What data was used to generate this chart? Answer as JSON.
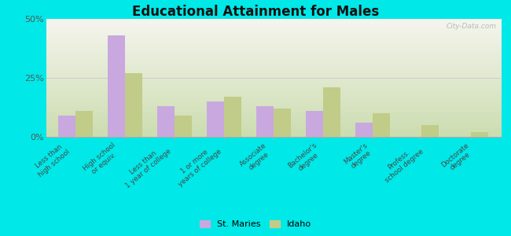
{
  "title": "Educational Attainment for Males",
  "categories": [
    "Less than\nhigh school",
    "High school\nor equiv.",
    "Less than\n1 year of college",
    "1 or more\nyears of college",
    "Associate\ndegree",
    "Bachelor's\ndegree",
    "Master's\ndegree",
    "Profess.\nschool degree",
    "Doctorate\ndegree"
  ],
  "st_maries": [
    9,
    43,
    13,
    15,
    13,
    11,
    6,
    0,
    0
  ],
  "idaho": [
    11,
    27,
    9,
    17,
    12,
    21,
    10,
    5,
    2
  ],
  "bar_color_st_maries": "#c8a8de",
  "bar_color_idaho": "#c0cc88",
  "bg_top": "#f5f5ee",
  "bg_bottom": "#ccddb0",
  "outer_background": "#00e8e8",
  "ylim": [
    0,
    50
  ],
  "yticks": [
    0,
    25,
    50
  ],
  "ytick_labels": [
    "0%",
    "25%",
    "50%"
  ],
  "legend_st_maries": "St. Maries",
  "legend_idaho": "Idaho",
  "watermark": "City-Data.com"
}
